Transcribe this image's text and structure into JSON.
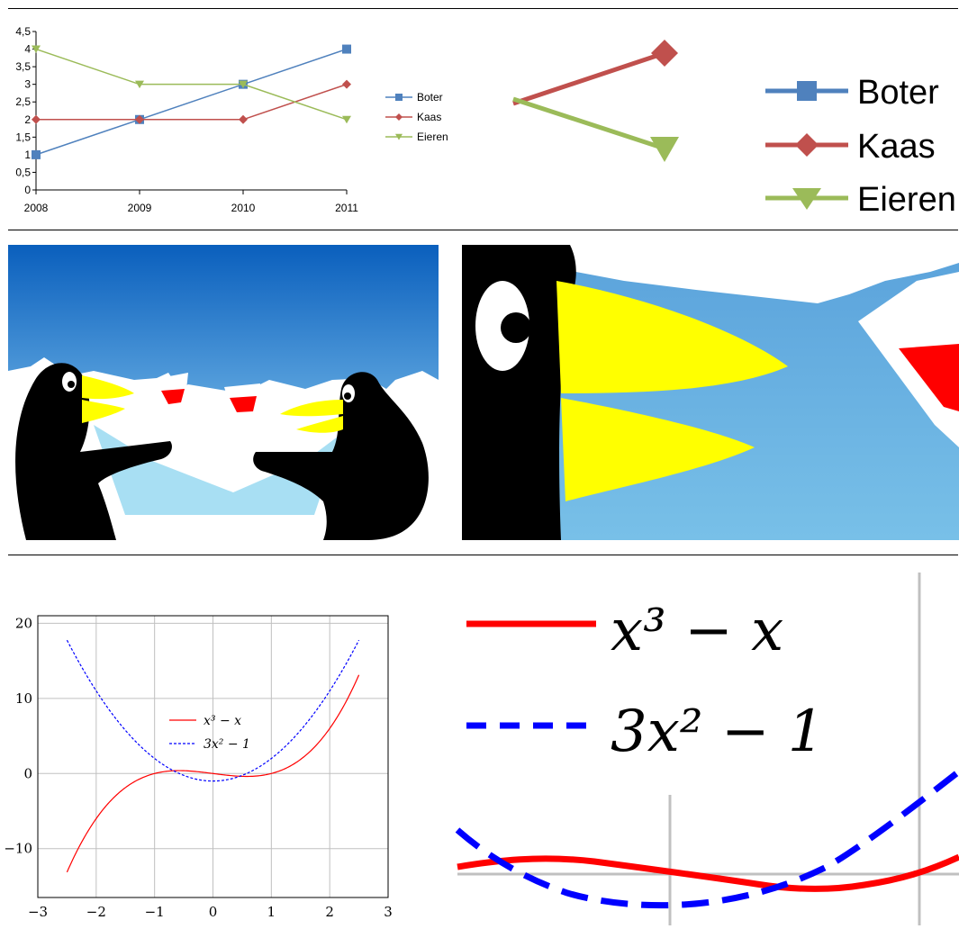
{
  "colors": {
    "boter": "#4f81bd",
    "kaas": "#c0504d",
    "eieren": "#9bbb59",
    "red_curve": "#ff0000",
    "blue_curve": "#0000ff",
    "grid": "#c0c0c0"
  },
  "chart_data": [
    {
      "type": "line",
      "categories": [
        "2008",
        "2009",
        "2010",
        "2011"
      ],
      "series": [
        {
          "name": "Boter",
          "values": [
            1,
            2,
            3,
            4
          ],
          "marker": "square"
        },
        {
          "name": "Kaas",
          "values": [
            2,
            2,
            2,
            3
          ],
          "marker": "diamond"
        },
        {
          "name": "Eieren",
          "values": [
            4,
            3,
            3,
            2
          ],
          "marker": "triangle-down"
        }
      ],
      "yticks": [
        "0",
        "0,5",
        "1",
        "1,5",
        "2",
        "2,5",
        "3",
        "3,5",
        "4",
        "4,5"
      ],
      "ylim": [
        0,
        4.5
      ],
      "legend": "right",
      "grid": false
    },
    {
      "type": "line",
      "x_range": [
        -2.5,
        2.5
      ],
      "series": [
        {
          "name": "x³ − x",
          "formula": "x^3 - x",
          "style": "solid"
        },
        {
          "name": "3x² − 1",
          "formula": "3x^2 - 1",
          "style": "dashed"
        }
      ],
      "xticks": [
        "−3",
        "−2",
        "−1",
        "0",
        "1",
        "2",
        "3"
      ],
      "yticks": [
        "−10",
        "0",
        "10",
        "20"
      ],
      "xlim": [
        -3,
        3
      ],
      "ylim": [
        -16.5,
        21
      ],
      "grid": true,
      "legend": "center"
    }
  ],
  "zoom_legend_top": {
    "items": [
      "Boter",
      "Kaas",
      "Eieren"
    ]
  },
  "zoom_legend_bottom": {
    "item1": "x³ − x",
    "item2": "3x² − 1"
  },
  "illustration": {
    "subject": "two penguins toasting with wine glasses",
    "icons": [
      "penguin-left",
      "penguin-right",
      "wine-glass-left",
      "wine-glass-right",
      "iceberg"
    ]
  }
}
